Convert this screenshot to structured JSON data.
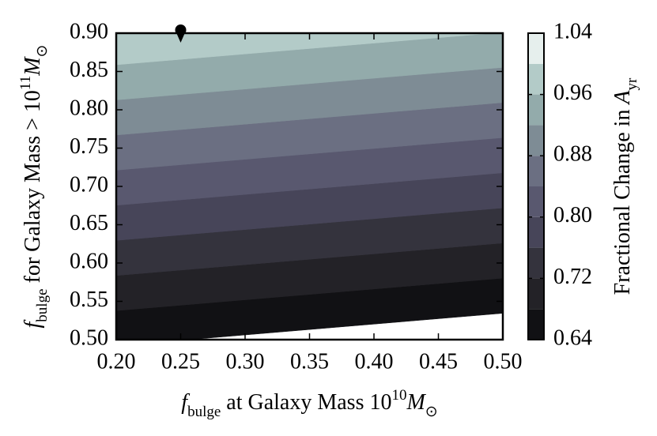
{
  "chart_data": {
    "type": "contour",
    "xlabel": [
      "f",
      "bulge",
      " at Galaxy Mass 10",
      "10",
      "M",
      "⊙"
    ],
    "ylabel": [
      "f",
      "bulge",
      " for Galaxy Mass > 10",
      "11",
      "M",
      "⊙"
    ],
    "colorbar_label": [
      "Fractional Change in ",
      "A",
      "yr"
    ],
    "x": [
      0.2,
      0.5
    ],
    "y": [
      0.5,
      0.9
    ],
    "z": [
      [
        0.647,
        0.61
      ],
      [
        0.996,
        0.959
      ]
    ],
    "levels": [
      0.64,
      0.68,
      0.72,
      0.76,
      0.8,
      0.84,
      0.88,
      0.92,
      0.96,
      1,
      1.04
    ],
    "colors": [
      "#111114",
      "#232227",
      "#34333d",
      "#474559",
      "#59586f",
      "#6b6f82",
      "#7e8c95",
      "#93abab",
      "#b3cbc8",
      "#e6efed"
    ],
    "xlim": [
      0.2,
      0.5
    ],
    "xticks": [
      {
        "value": 0.2,
        "label": "0.20"
      },
      0.25,
      {
        "value": 0.3,
        "label": "0.30"
      },
      0.35,
      {
        "value": 0.4,
        "label": "0.40"
      },
      0.45,
      {
        "value": 0.5,
        "label": "0.50"
      }
    ],
    "ylim": [
      0.5,
      0.9
    ],
    "yticks": [
      {
        "value": 0.5,
        "label": "0.50"
      },
      0.55,
      {
        "value": 0.6,
        "label": "0.60"
      },
      0.65,
      {
        "value": 0.7,
        "label": "0.70"
      },
      0.75,
      {
        "value": 0.8,
        "label": "0.80"
      },
      0.85,
      {
        "value": 0.9,
        "label": "0.90"
      }
    ],
    "clim": [
      0.64,
      1.04
    ],
    "cticks": [
      0.64,
      0.72,
      {
        "value": 0.8,
        "label": "0.80"
      },
      0.88,
      0.96,
      1.04
    ],
    "markers": [
      {
        "x": 0.25,
        "y": 0.9
      }
    ]
  }
}
